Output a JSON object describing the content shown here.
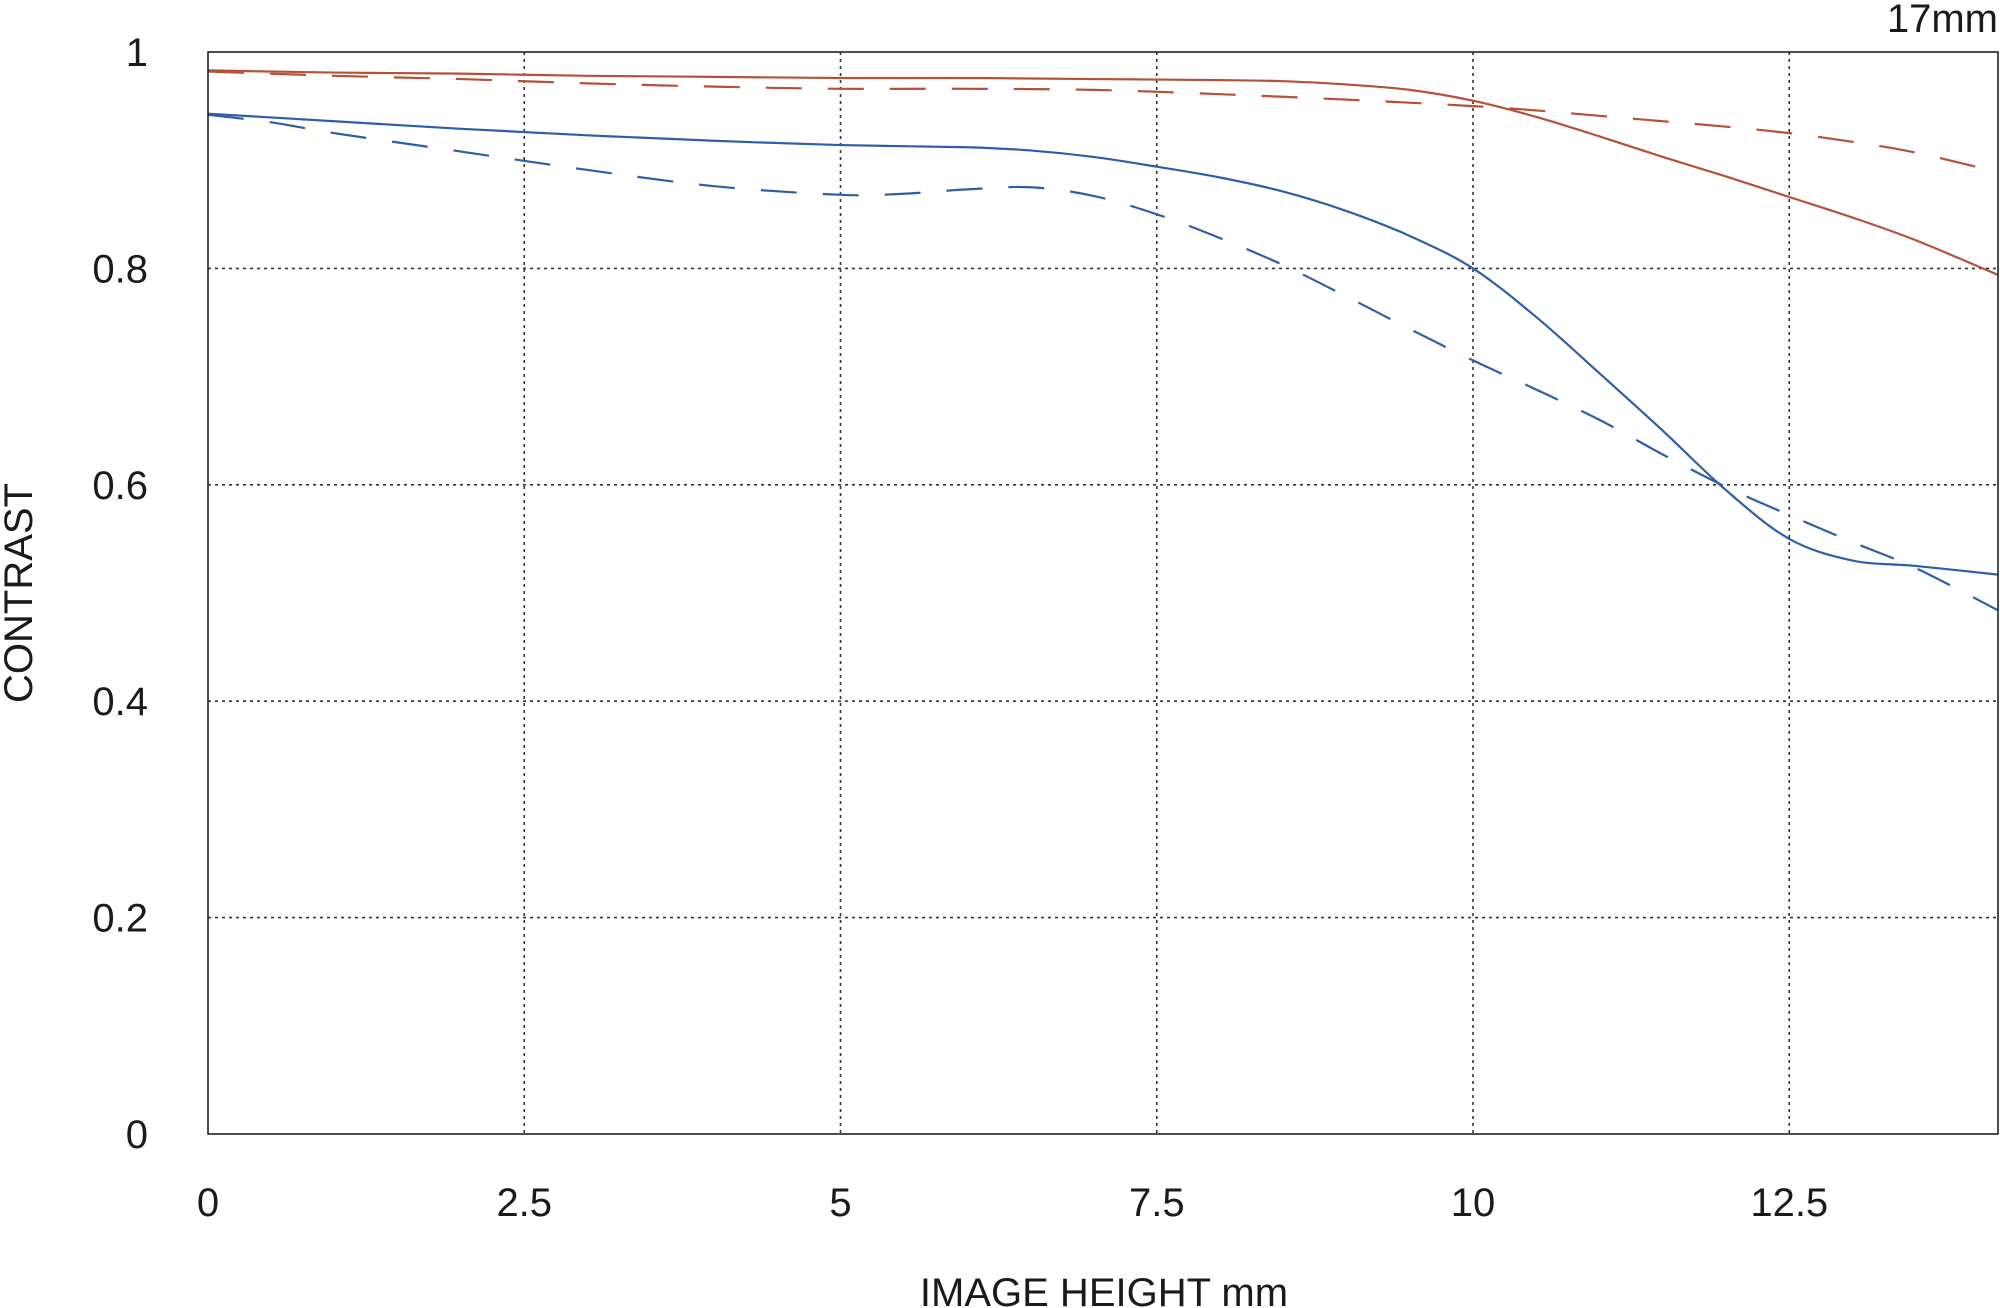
{
  "corner_label": "17mm",
  "colors": {
    "sagittal_red": "#b5513a",
    "meridional_blue": "#2f5ea8",
    "grid": "#333333"
  },
  "chart_data": {
    "type": "line",
    "title": "",
    "xlabel": "IMAGE HEIGHT  mm",
    "ylabel": "CONTRAST",
    "xlim": [
      0,
      14.15
    ],
    "ylim": [
      0,
      1
    ],
    "x_ticks": [
      0,
      2.5,
      5,
      7.5,
      10,
      12.5
    ],
    "x_tick_labels": [
      "0",
      "2.5",
      "5",
      "7.5",
      "10",
      "12.5"
    ],
    "y_ticks": [
      0,
      0.2,
      0.4,
      0.6,
      0.8,
      1
    ],
    "y_tick_labels": [
      "0",
      "0.2",
      "0.4",
      "0.6",
      "0.8",
      "1"
    ],
    "grid": true,
    "legend": "none",
    "series": [
      {
        "color": "#b5513a",
        "dash": "solid",
        "x": [
          0,
          1,
          2,
          3,
          4,
          5,
          6,
          7,
          8,
          8.5,
          9,
          9.5,
          10,
          10.5,
          11,
          11.5,
          12,
          12.5,
          13,
          13.5,
          14.15
        ],
        "y": [
          0.983,
          0.981,
          0.98,
          0.978,
          0.977,
          0.976,
          0.976,
          0.975,
          0.974,
          0.973,
          0.97,
          0.965,
          0.955,
          0.94,
          0.922,
          0.903,
          0.885,
          0.866,
          0.847,
          0.826,
          0.794
        ]
      },
      {
        "color": "#b5513a",
        "dash": "dashed",
        "x": [
          0,
          1,
          2,
          3,
          4,
          5,
          6,
          7,
          8,
          9,
          10,
          10.5,
          11,
          11.5,
          12,
          12.5,
          13,
          13.5,
          14.15
        ],
        "y": [
          0.982,
          0.978,
          0.975,
          0.971,
          0.968,
          0.966,
          0.966,
          0.965,
          0.961,
          0.956,
          0.95,
          0.946,
          0.941,
          0.936,
          0.931,
          0.925,
          0.917,
          0.907,
          0.889
        ]
      },
      {
        "color": "#2f5ea8",
        "dash": "solid",
        "x": [
          0,
          1,
          2,
          3,
          4,
          5,
          6,
          6.5,
          7,
          7.5,
          8,
          8.5,
          9,
          9.5,
          10,
          10.5,
          11,
          11.5,
          12,
          12.5,
          13,
          13.5,
          14.15
        ],
        "y": [
          0.943,
          0.936,
          0.929,
          0.923,
          0.918,
          0.914,
          0.912,
          0.909,
          0.903,
          0.894,
          0.884,
          0.871,
          0.853,
          0.83,
          0.8,
          0.755,
          0.703,
          0.65,
          0.595,
          0.55,
          0.53,
          0.525,
          0.517
        ]
      },
      {
        "color": "#2f5ea8",
        "dash": "dashed",
        "x": [
          0,
          0.5,
          1,
          2,
          3,
          4,
          5,
          5.5,
          6,
          6.5,
          7,
          7.5,
          8,
          8.5,
          9,
          9.5,
          10,
          10.5,
          11,
          11.5,
          12,
          12.5,
          13,
          13.5,
          14.15
        ],
        "y": [
          0.942,
          0.935,
          0.925,
          0.908,
          0.891,
          0.876,
          0.868,
          0.869,
          0.873,
          0.875,
          0.867,
          0.85,
          0.828,
          0.803,
          0.774,
          0.744,
          0.715,
          0.688,
          0.66,
          0.628,
          0.598,
          0.572,
          0.547,
          0.523,
          0.484
        ]
      }
    ]
  }
}
